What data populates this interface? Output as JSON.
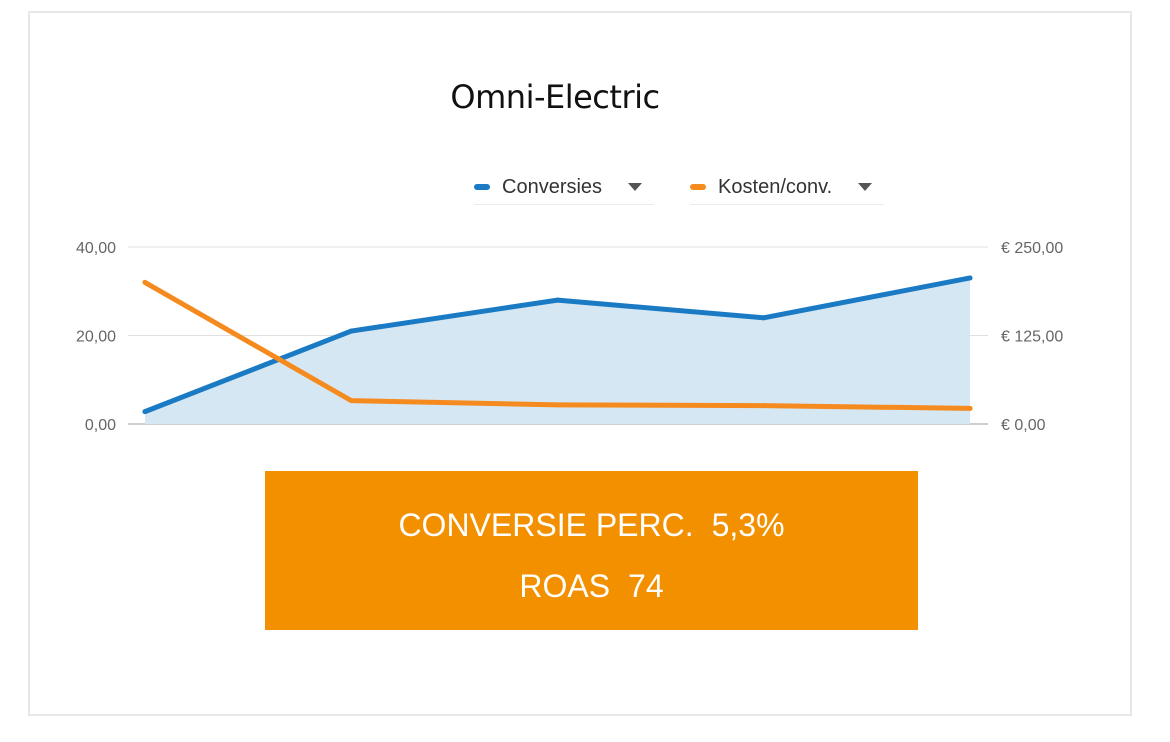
{
  "title": "Omni-Electric",
  "legend": [
    {
      "label": "Conversies",
      "color": "#1a7bc4"
    },
    {
      "label": "Kosten/conv.",
      "color": "#f58a1f"
    }
  ],
  "banner": {
    "rate_label": "CONVERSIE PERC.",
    "rate_value": "5,3%",
    "roas_label": "ROAS",
    "roas_value": "74",
    "color": "#f29000"
  },
  "chart_data": {
    "type": "line",
    "x": [
      1,
      2,
      3,
      4,
      5
    ],
    "series": [
      {
        "name": "Conversies",
        "axis": "left",
        "values": [
          2.8,
          21,
          28,
          24,
          33
        ],
        "color": "#1a7bc4",
        "area_fill": "#d6e7f4"
      },
      {
        "name": "Kosten/conv.",
        "axis": "right",
        "values": [
          200,
          33,
          27,
          26,
          22
        ],
        "color": "#f58a1f"
      }
    ],
    "y_left": {
      "ylim": [
        0,
        40
      ],
      "ticks": [
        0,
        20,
        40
      ],
      "tick_labels": [
        "0,00",
        "20,00",
        "40,00"
      ]
    },
    "y_right": {
      "ylim": [
        0,
        250
      ],
      "ticks": [
        0,
        125,
        250
      ],
      "tick_labels": [
        "€ 0,00",
        "€ 125,00",
        "€ 250,00"
      ]
    },
    "grid": true,
    "legend_position": "top-right"
  }
}
